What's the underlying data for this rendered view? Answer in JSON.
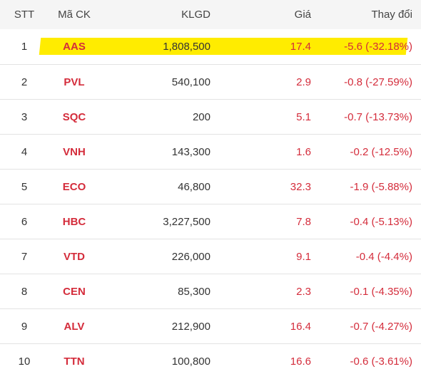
{
  "columns": {
    "stt": "STT",
    "code": "Mã CK",
    "volume": "KLGD",
    "price": "Giá",
    "change": "Thay đổi"
  },
  "colors": {
    "down": "#d42c3b",
    "highlight": "#ffec00",
    "header_bg": "#f5f5f5"
  },
  "rows": [
    {
      "stt": "1",
      "code": "AAS",
      "volume": "1,808,500",
      "price": "17.4",
      "change": "-5.6 (-32.18%)",
      "highlighted": true
    },
    {
      "stt": "2",
      "code": "PVL",
      "volume": "540,100",
      "price": "2.9",
      "change": "-0.8 (-27.59%)"
    },
    {
      "stt": "3",
      "code": "SQC",
      "volume": "200",
      "price": "5.1",
      "change": "-0.7 (-13.73%)"
    },
    {
      "stt": "4",
      "code": "VNH",
      "volume": "143,300",
      "price": "1.6",
      "change": "-0.2 (-12.5%)"
    },
    {
      "stt": "5",
      "code": "ECO",
      "volume": "46,800",
      "price": "32.3",
      "change": "-1.9 (-5.88%)"
    },
    {
      "stt": "6",
      "code": "HBC",
      "volume": "3,227,500",
      "price": "7.8",
      "change": "-0.4 (-5.13%)"
    },
    {
      "stt": "7",
      "code": "VTD",
      "volume": "226,000",
      "price": "9.1",
      "change": "-0.4 (-4.4%)"
    },
    {
      "stt": "8",
      "code": "CEN",
      "volume": "85,300",
      "price": "2.3",
      "change": "-0.1 (-4.35%)"
    },
    {
      "stt": "9",
      "code": "ALV",
      "volume": "212,900",
      "price": "16.4",
      "change": "-0.7 (-4.27%)"
    },
    {
      "stt": "10",
      "code": "TTN",
      "volume": "100,800",
      "price": "16.6",
      "change": "-0.6 (-3.61%)"
    }
  ]
}
